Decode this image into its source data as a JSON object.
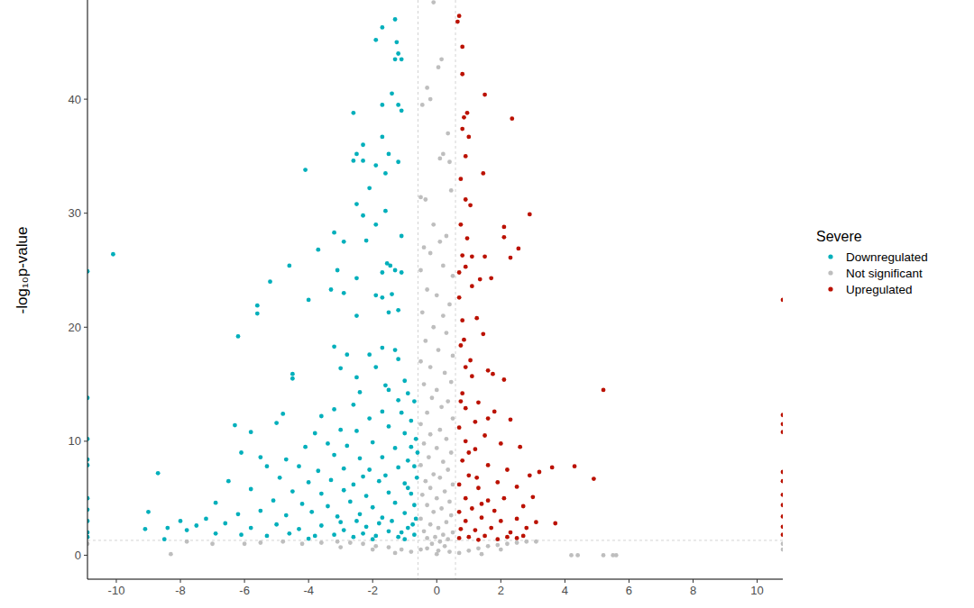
{
  "chart_data": {
    "type": "scatter",
    "y_label": "-log₁₀p-value",
    "legend_title": "Severe",
    "legend": "right",
    "xlim": [
      -10.9,
      10.8
    ],
    "ylim": [
      -2.1,
      48.7
    ],
    "xticks": [
      -10,
      -8,
      -6,
      -4,
      -2,
      0,
      2,
      4,
      6,
      8,
      10
    ],
    "yticks": [
      0,
      10,
      20,
      30,
      40
    ],
    "grid": false,
    "thresholds": {
      "x": [
        -0.585,
        0.585
      ],
      "y": 1.301
    },
    "series": [
      {
        "name": "Downregulated",
        "color": "#00AFBB",
        "marker": "circle",
        "x": [
          -1.7,
          -1.3,
          -1.25,
          -1.2,
          -1.3,
          -1.1,
          -1.9,
          -1.4,
          -1.2,
          -1.1,
          -1.7,
          -2.6,
          -2.3,
          -2.5,
          -2.3,
          -2.6,
          -1.7,
          -1.5,
          -1.9,
          -1.2,
          -1.6,
          -4.1,
          -2.1,
          -2.5,
          -2.3,
          -1.6,
          -1.9,
          -3.2,
          -2.9,
          -2.2,
          -1.1,
          -10.1,
          -3.7,
          -3.1,
          -4.6,
          -2.5,
          -1.55,
          -1.45,
          -1.3,
          -1.7,
          -1.1,
          -5.2,
          -5.6,
          -5.6,
          -4.0,
          -3.3,
          -2.9,
          -1.9,
          -1.7,
          -1.4,
          -1.5,
          -1.2,
          -2.5,
          -6.2,
          -3.2,
          -2.1,
          -1.3,
          -1.7,
          -1.2,
          -2.8,
          -3.0,
          -1.9,
          -4.5,
          -4.5,
          -2.5,
          -2.4,
          -1.5,
          -1.6,
          -1.0,
          -2.6,
          -3.2,
          -3.6,
          -4.8,
          -6.3,
          -5.0,
          -2.1,
          -1.7,
          -1.1,
          -5.8,
          -3.8,
          -2.5,
          -3.0,
          -1.5,
          -1.0,
          -6.1,
          -4.1,
          -3.4,
          -2.8,
          -2.0,
          -1.3,
          -0.8,
          -5.5,
          -4.7,
          -3.2,
          -2.4,
          -1.7,
          -0.9,
          -8.7,
          -5.3,
          -4.3,
          -3.7,
          -2.9,
          -2.1,
          -1.2,
          -0.7,
          -6.5,
          -4.9,
          -4.0,
          -3.3,
          -2.6,
          -1.8,
          -1.0,
          -5.8,
          -4.5,
          -3.6,
          -2.9,
          -2.2,
          -1.5,
          -0.8,
          -6.9,
          -5.1,
          -4.2,
          -3.4,
          -2.7,
          -2.0,
          -1.3,
          -0.7,
          -7.2,
          -6.2,
          -5.5,
          -4.7,
          -3.9,
          -3.1,
          -2.4,
          -1.7,
          -1.0,
          -0.65,
          -9.0,
          -8.0,
          -7.5,
          -6.6,
          -5.8,
          -5.0,
          -4.3,
          -3.6,
          -2.9,
          -2.2,
          -1.5,
          -0.9,
          -9.1,
          -8.4,
          -7.8,
          -6.9,
          -6.1,
          -5.3,
          -4.6,
          -3.8,
          -3.2,
          -2.6,
          -1.9,
          -1.2,
          -0.7,
          -8.5,
          -4.0,
          -2.0,
          -1.0,
          -10.9,
          -10.9,
          -10.9,
          -10.9,
          -10.9,
          -10.9,
          -10.9,
          -10.9,
          -10.9,
          -10.9,
          -1.4,
          -2.5,
          -1.1,
          -1.8,
          -2.3,
          -3.0,
          -0.75,
          -0.9,
          -1.6,
          -2.3,
          -0.8,
          -0.7,
          -0.9,
          -1.2,
          -0.65,
          -0.6,
          -0.62
        ],
        "values": [
          46.3,
          47.0,
          45,
          44,
          43.5,
          43.5,
          45.2,
          40.5,
          39.5,
          39,
          39.5,
          38.8,
          36,
          35.2,
          34.6,
          34.6,
          36.7,
          35.2,
          34.2,
          34.5,
          33.5,
          33.8,
          32.2,
          30.8,
          29.8,
          30.2,
          29,
          28.3,
          27.5,
          27.6,
          28,
          26.4,
          26.8,
          25,
          25.4,
          24.3,
          25.6,
          25.4,
          25,
          24.8,
          24.8,
          24,
          21.9,
          21.2,
          22.4,
          23.3,
          23,
          22.8,
          22.6,
          22.9,
          21.3,
          21.5,
          21,
          19.2,
          18.3,
          17.6,
          18,
          18.2,
          17.2,
          17.6,
          16.4,
          16.5,
          15.9,
          15.5,
          15.6,
          14.3,
          14.5,
          14.9,
          15.3,
          13.2,
          12.8,
          12.2,
          12.4,
          11.4,
          11.6,
          12.0,
          12.6,
          12.5,
          10.8,
          10.7,
          10.9,
          11.0,
          11.3,
          10.7,
          9.0,
          9.5,
          9.8,
          9.6,
          9.9,
          9.4,
          9.5,
          8.6,
          8.4,
          8.8,
          8.5,
          8.6,
          8.3,
          7.2,
          7.8,
          7.8,
          7.4,
          7.6,
          7.5,
          7.7,
          7.8,
          6.5,
          6.8,
          6.4,
          6.6,
          6.2,
          6.5,
          6.3,
          5.8,
          5.6,
          5.4,
          5.7,
          5.2,
          5.5,
          5.4,
          4.6,
          4.8,
          4.5,
          4.3,
          4.7,
          4.2,
          4.6,
          4.4,
          3.2,
          3.6,
          3.9,
          3.5,
          3.8,
          3.4,
          3.6,
          3.3,
          3.7,
          3.2,
          3.8,
          3.0,
          2.6,
          2.8,
          2.4,
          2.7,
          2.3,
          2.6,
          2.2,
          2.5,
          2.1,
          2.4,
          2.3,
          2.4,
          2.2,
          1.9,
          1.8,
          1.7,
          1.9,
          1.7,
          1.8,
          1.6,
          1.7,
          1.6,
          1.8,
          1.4,
          1.45,
          1.4,
          1.4,
          13.8,
          10.2,
          8.4,
          7.9,
          5,
          4,
          3,
          2,
          1.6,
          24.9,
          3.0,
          3.0,
          2.0,
          2.8,
          1.9,
          2.9,
          2.7,
          5.9,
          7.0,
          6.9,
          11.8,
          13.5,
          14.2,
          13.6,
          10.2,
          9.0,
          6.8
        ]
      },
      {
        "name": "Not significant",
        "color": "#BEBEBE",
        "marker": "circle",
        "x": [
          -0.1,
          0.15,
          0.05,
          -0.3,
          -0.2,
          0.35,
          0.2,
          0.1,
          0.4,
          -0.45,
          -0.5,
          -0.35,
          0.45,
          -0.1,
          0.3,
          -0.4,
          0.1,
          -0.2,
          0.2,
          -0.5,
          0.5,
          -0.3,
          0.0,
          0.4,
          -0.45,
          0.2,
          -0.1,
          0.3,
          -0.35,
          0.05,
          0.5,
          -0.5,
          -0.2,
          0.25,
          0.45,
          -0.4,
          0.0,
          -0.15,
          0.35,
          0.15,
          -0.3,
          0.5,
          -0.5,
          0.1,
          -0.2,
          0.3,
          -0.4,
          0.0,
          0.45,
          -0.25,
          0.2,
          -0.5,
          0.35,
          -0.1,
          0.1,
          -0.35,
          0.5,
          -0.2,
          0.25,
          -0.45,
          0.0,
          0.4,
          -0.3,
          0.15,
          -0.1,
          0.45,
          -0.5,
          0.3,
          -0.2,
          0.05,
          -0.4,
          0.5,
          0.2,
          -0.05,
          -0.3,
          0.35,
          0.1,
          -0.15,
          0.25,
          -0.3,
          0.05,
          0.4,
          -0.5,
          0.0,
          0.7,
          -0.8,
          1.0,
          -1.1,
          1.3,
          -1.5,
          1.6,
          -1.9,
          1.9,
          -2.3,
          2.2,
          -2.7,
          2.5,
          -3.1,
          2.8,
          -3.6,
          3.1,
          -4.2,
          -4.8,
          -5.5,
          -6.0,
          -7.0,
          -7.8,
          -8.3,
          -3.0,
          -2.0,
          2.0,
          -1.3,
          1.4,
          4.2,
          4.4,
          5.2,
          5.5,
          5.6,
          10.8,
          10.8,
          -10.9
        ],
        "values": [
          48.5,
          43.5,
          42.8,
          41.0,
          40.0,
          37,
          35.2,
          34.8,
          34.5,
          39.5,
          31.4,
          31.2,
          32.0,
          29,
          28.0,
          27,
          27.5,
          26.5,
          25.4,
          25.0,
          24.5,
          23.3,
          22.8,
          22.0,
          21.3,
          21.0,
          20.0,
          19.5,
          18.8,
          18.0,
          17.5,
          17.0,
          16.5,
          16.0,
          15.2,
          15.0,
          14.5,
          13.8,
          13.5,
          13.0,
          12.5,
          12.0,
          11.5,
          11.0,
          10.6,
          10.2,
          9.8,
          9.4,
          9.0,
          8.6,
          8.2,
          7.9,
          7.5,
          7.1,
          6.8,
          6.5,
          6.2,
          5.9,
          5.6,
          5.3,
          5.0,
          4.7,
          4.4,
          4.1,
          3.8,
          3.5,
          3.2,
          2.9,
          2.7,
          2.4,
          2.1,
          2.0,
          1.8,
          1.6,
          1.5,
          1.4,
          1.2,
          1.0,
          0.8,
          0.6,
          0.4,
          0.3,
          0.5,
          0.1,
          0.2,
          0.3,
          0.4,
          0.5,
          0.6,
          0.7,
          0.8,
          0.8,
          0.9,
          1.0,
          1.0,
          1.1,
          1.1,
          1.2,
          1.2,
          1.1,
          1.2,
          1.0,
          1.2,
          1.1,
          1.0,
          1.0,
          1.2,
          0.1,
          0.7,
          0.5,
          0.5,
          0.2,
          0.1,
          0,
          0,
          0,
          0,
          0,
          1.0,
          0.5,
          1.0
        ]
      },
      {
        "name": "Upregulated",
        "color": "#BB1100",
        "marker": "circle",
        "x": [
          0.7,
          0.65,
          0.8,
          0.8,
          1.5,
          0.95,
          0.85,
          2.35,
          0.8,
          1.0,
          0.9,
          1.45,
          0.75,
          0.9,
          1.05,
          2.9,
          2.1,
          0.75,
          0.95,
          2.1,
          1.1,
          1.5,
          0.8,
          2.55,
          2.3,
          0.9,
          0.7,
          1.7,
          1.35,
          1.1,
          0.7,
          1.25,
          1.45,
          0.8,
          0.75,
          1.05,
          0.9,
          1.6,
          1.75,
          1.1,
          2.1,
          5.2,
          0.8,
          1.3,
          0.9,
          1.8,
          2.3,
          1.2,
          0.7,
          1.5,
          0.9,
          2.0,
          2.6,
          1.2,
          3.6,
          4.3,
          3.2,
          4.9,
          2.9,
          2.2,
          1.6,
          0.8,
          1.0,
          1.9,
          2.5,
          1.3,
          0.7,
          3.0,
          2.1,
          1.6,
          0.9,
          2.7,
          1.8,
          1.1,
          0.7,
          3.7,
          3.1,
          2.5,
          2.0,
          1.4,
          0.9,
          2.8,
          2.3,
          1.7,
          1.2,
          0.75,
          2.7,
          2.2,
          1.5,
          1.0,
          0.7,
          1.9,
          1.3,
          2.5,
          1.4,
          1.0,
          0.75,
          1.25,
          0.85,
          1.6,
          10.8,
          10.8,
          10.8,
          10.8,
          10.8,
          10.8,
          10.8,
          10.8,
          10.8,
          10.8,
          10.8
        ],
        "values": [
          47.3,
          46.8,
          44.6,
          42.2,
          40.4,
          38.8,
          38.4,
          38.3,
          37.4,
          36.7,
          35.0,
          33.5,
          33.0,
          31.2,
          30.7,
          29.9,
          28.8,
          29.0,
          27.8,
          27.9,
          26.2,
          26.2,
          26.3,
          26.9,
          26.1,
          25.3,
          24.8,
          24.3,
          24.2,
          23.6,
          22.6,
          20.8,
          19.4,
          20.6,
          18.4,
          17.1,
          16.5,
          16.2,
          15.9,
          15.7,
          15.4,
          14.5,
          14.2,
          13.4,
          12.9,
          12.6,
          11.9,
          11.7,
          11.2,
          10.5,
          10.0,
          9.8,
          9.5,
          9.3,
          7.7,
          7.8,
          7.3,
          6.7,
          7.0,
          7.5,
          7.9,
          8.3,
          7.0,
          6.4,
          6.0,
          5.9,
          6.2,
          5.1,
          5.0,
          4.8,
          5.0,
          4.3,
          3.9,
          4.1,
          3.8,
          2.8,
          2.9,
          3.2,
          3.0,
          3.3,
          3.0,
          2.4,
          2.0,
          2.4,
          2.2,
          2.3,
          1.7,
          1.6,
          1.7,
          1.6,
          1.5,
          1.4,
          1.35,
          1.5,
          4.5,
          9.0,
          13.5,
          6.8,
          18.9,
          12.0,
          22.4,
          12.3,
          11.5,
          10.8,
          7.3,
          6.5,
          5.3,
          4.4,
          3.4,
          2.5,
          1.8
        ]
      }
    ]
  }
}
